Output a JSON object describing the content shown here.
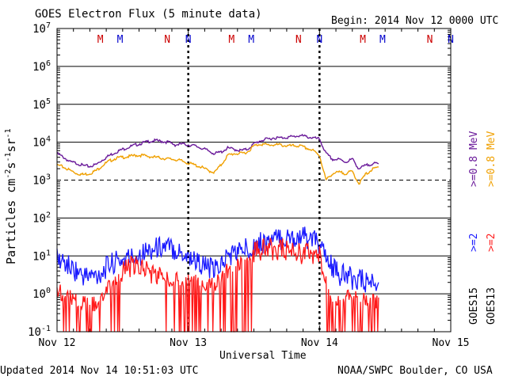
{
  "header": {
    "title": "GOES Electron Flux (5 minute data)",
    "begin": "Begin: 2014 Nov 12 0000 UTC"
  },
  "footer": {
    "updated": "Updated 2014 Nov 14 10:51:03 UTC",
    "credit": "NOAA/SWPC Boulder, CO USA"
  },
  "right_labels": {
    "goes13_high": ">=0.8 MeV",
    "goes15_high": ">=0.8 MeV",
    "goes15_low": ">=2",
    "goes13_low": ">=2",
    "goes15": "GOES15",
    "goes13": "GOES13"
  },
  "colors": {
    "goes15_ge2": "#1a1aff",
    "goes13_ge2": "#ff1a1a",
    "goes15_ge08": "#6a1a9a",
    "goes13_ge08": "#f0a000",
    "marker_M": "#cc0000",
    "marker_N_first": "#cc0000",
    "marker_N_second": "#0000cc"
  },
  "chart_data": {
    "type": "line",
    "title": "GOES Electron Flux (5 minute data)",
    "xlabel": "Universal Time",
    "ylabel": "Particles cm-2s-1sr-1",
    "y_scale": "log",
    "ylim": [
      0.1,
      10000000
    ],
    "y_ticks": [
      "10^-1",
      "10^0",
      "10^1",
      "10^2",
      "10^3",
      "10^4",
      "10^5",
      "10^6",
      "10^7"
    ],
    "xlim": [
      0,
      3
    ],
    "x_ticks": [
      {
        "x": 0,
        "label": "Nov 12"
      },
      {
        "x": 1,
        "label": "Nov 13"
      },
      {
        "x": 2,
        "label": "Nov 14"
      },
      {
        "x": 3,
        "label": "Nov 15"
      }
    ],
    "threshold": 1000,
    "midnight_lines": [
      1,
      2
    ],
    "markers": [
      {
        "x": 0.33,
        "label": "M"
      },
      {
        "x": 0.48,
        "label": "M"
      },
      {
        "x": 0.84,
        "label": "N"
      },
      {
        "x": 1.0,
        "label": "N"
      },
      {
        "x": 1.33,
        "label": "M"
      },
      {
        "x": 1.48,
        "label": "M"
      },
      {
        "x": 1.84,
        "label": "N"
      },
      {
        "x": 2.0,
        "label": "N"
      },
      {
        "x": 2.33,
        "label": "M"
      },
      {
        "x": 2.48,
        "label": "M"
      },
      {
        "x": 2.84,
        "label": "N"
      },
      {
        "x": 3.0,
        "label": "N"
      }
    ],
    "series": [
      {
        "name": ">=0.8 MeV GOES15",
        "color": "#6a1a9a",
        "x": [
          0,
          0.05,
          0.1,
          0.15,
          0.2,
          0.25,
          0.3,
          0.35,
          0.4,
          0.45,
          0.5,
          0.55,
          0.6,
          0.65,
          0.7,
          0.75,
          0.8,
          0.85,
          0.9,
          0.95,
          1.0,
          1.05,
          1.1,
          1.15,
          1.2,
          1.25,
          1.3,
          1.35,
          1.4,
          1.45,
          1.5,
          1.55,
          1.6,
          1.65,
          1.7,
          1.75,
          1.8,
          1.85,
          1.9,
          1.95,
          2.0,
          2.05,
          2.1,
          2.15,
          2.2,
          2.25,
          2.3,
          2.35,
          2.4,
          2.45
        ],
        "y": [
          5000,
          4000,
          3000,
          2800,
          2400,
          2300,
          2600,
          3500,
          4500,
          5500,
          6500,
          7500,
          8500,
          9500,
          10500,
          11000,
          10500,
          10000,
          8500,
          9000,
          8500,
          8000,
          7000,
          6000,
          5000,
          5500,
          7000,
          6500,
          6000,
          6500,
          9000,
          11000,
          12000,
          13000,
          13000,
          13500,
          14000,
          15000,
          14000,
          13000,
          12000,
          5000,
          3500,
          3500,
          3000,
          3600,
          2000,
          2400,
          2700,
          2700
        ]
      },
      {
        "name": ">=0.8 MeV GOES13",
        "color": "#f0a000",
        "x": [
          0,
          0.05,
          0.1,
          0.15,
          0.2,
          0.25,
          0.3,
          0.35,
          0.4,
          0.45,
          0.5,
          0.55,
          0.6,
          0.65,
          0.7,
          0.75,
          0.8,
          0.85,
          0.9,
          0.95,
          1.0,
          1.05,
          1.1,
          1.15,
          1.2,
          1.25,
          1.3,
          1.35,
          1.4,
          1.45,
          1.5,
          1.55,
          1.6,
          1.65,
          1.7,
          1.75,
          1.8,
          1.85,
          1.9,
          1.95,
          2.0,
          2.05,
          2.1,
          2.15,
          2.2,
          2.25,
          2.3,
          2.35,
          2.4,
          2.45
        ],
        "y": [
          2500,
          2200,
          1800,
          1500,
          1400,
          1500,
          1800,
          2500,
          3200,
          3800,
          4000,
          4200,
          4500,
          4500,
          4200,
          4000,
          3800,
          3600,
          3500,
          3200,
          2800,
          2500,
          2200,
          1800,
          1600,
          2500,
          4500,
          5000,
          5000,
          5500,
          8000,
          9000,
          8500,
          8500,
          8500,
          8000,
          8000,
          8000,
          7000,
          6000,
          4500,
          1000,
          1500,
          1600,
          1500,
          1700,
          800,
          1400,
          1900,
          2200
        ]
      },
      {
        "name": ">=2 GOES15",
        "color": "#1a1aff",
        "x": [
          0,
          0.05,
          0.1,
          0.15,
          0.2,
          0.25,
          0.3,
          0.35,
          0.4,
          0.45,
          0.5,
          0.55,
          0.6,
          0.65,
          0.7,
          0.75,
          0.8,
          0.85,
          0.9,
          0.95,
          1.0,
          1.05,
          1.1,
          1.15,
          1.2,
          1.25,
          1.3,
          1.35,
          1.4,
          1.45,
          1.5,
          1.55,
          1.6,
          1.65,
          1.7,
          1.75,
          1.8,
          1.85,
          1.9,
          1.95,
          2.0,
          2.05,
          2.1,
          2.15,
          2.2,
          2.25,
          2.3,
          2.35,
          2.4,
          2.45
        ],
        "y": [
          8,
          7,
          5,
          4,
          3,
          3,
          3,
          4,
          6,
          7,
          8,
          9,
          10,
          12,
          14,
          16,
          18,
          17,
          15,
          12,
          10,
          8,
          6,
          5,
          4,
          6,
          10,
          12,
          14,
          16,
          20,
          22,
          24,
          26,
          28,
          30,
          30,
          32,
          30,
          26,
          20,
          8,
          5,
          3,
          3,
          2.5,
          2.5,
          2,
          2,
          2
        ]
      },
      {
        "name": ">=2 GOES13",
        "color": "#ff1a1a",
        "x": [
          0,
          0.05,
          0.1,
          0.15,
          0.2,
          0.25,
          0.3,
          0.35,
          0.4,
          0.45,
          0.5,
          0.55,
          0.6,
          0.65,
          0.7,
          0.75,
          0.8,
          0.85,
          0.9,
          0.95,
          1.0,
          1.05,
          1.1,
          1.15,
          1.2,
          1.25,
          1.3,
          1.35,
          1.4,
          1.45,
          1.5,
          1.55,
          1.6,
          1.65,
          1.7,
          1.75,
          1.8,
          1.85,
          1.9,
          1.95,
          2.0,
          2.05,
          2.1,
          2.15,
          2.2,
          2.25,
          2.3,
          2.35,
          2.4,
          2.45
        ],
        "y": [
          1.5,
          1.2,
          1,
          0.8,
          0.7,
          0.6,
          0.7,
          1,
          2,
          3,
          4,
          5,
          5,
          5,
          4,
          3,
          3,
          3,
          3,
          3,
          3,
          2.5,
          2,
          2,
          2,
          3,
          5,
          6,
          8,
          9,
          12,
          14,
          15,
          15,
          15,
          14,
          13,
          12,
          12,
          11,
          10,
          1.5,
          1,
          1,
          1,
          1,
          0.8,
          0.8,
          0.8,
          0.8
        ]
      }
    ]
  }
}
